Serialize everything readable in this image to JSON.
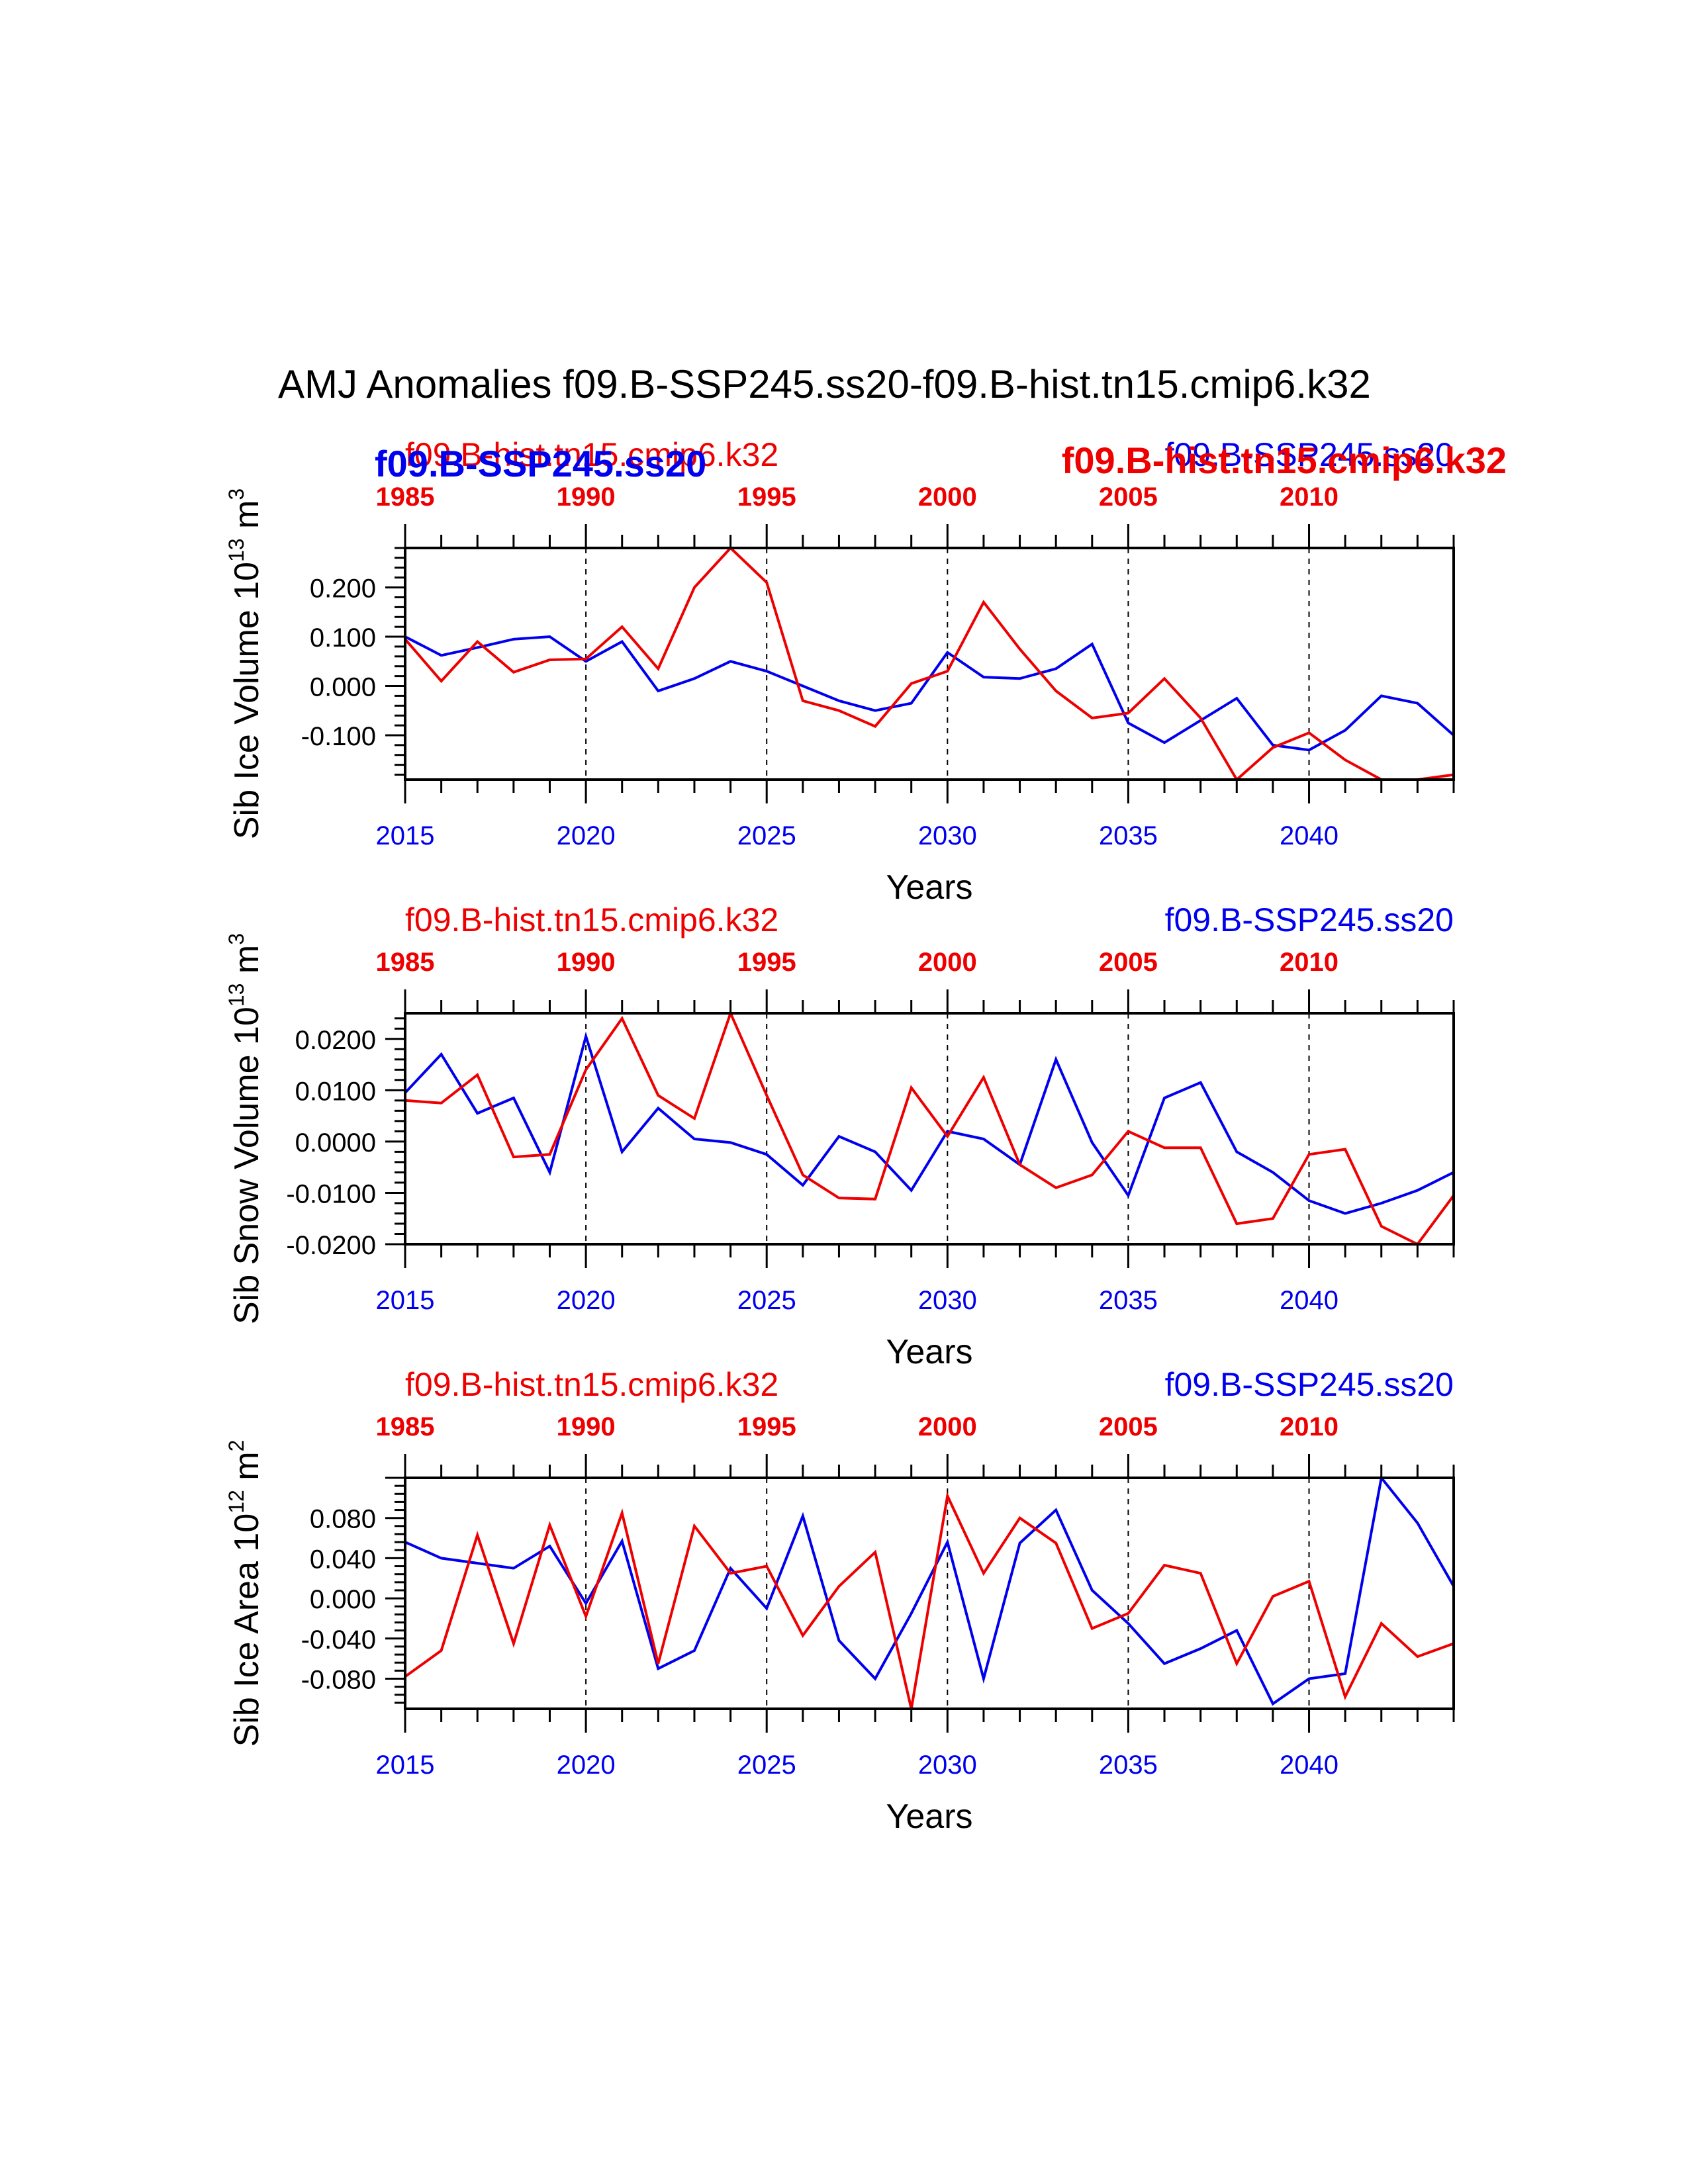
{
  "title": "AMJ Anomalies f09.B-SSP245.ss20-f09.B-hist.tn15.cmip6.k32",
  "colors": {
    "ssp": "#0000ee",
    "hist": "#ee0000",
    "axis": "#000000"
  },
  "xlabel": "Years",
  "bottom_axis_ticks": [
    "2015",
    "2020",
    "2025",
    "2030",
    "2035",
    "2040"
  ],
  "top_axis_ticks": [
    "1985",
    "1990",
    "1995",
    "2000",
    "2005",
    "2010"
  ],
  "panel1_extra_labels": {
    "ssp_bold": "f09.B-SSP245.ss20",
    "hist_bold": "f09.B-hist.tn15.cmip6.k32"
  },
  "chart_data": [
    {
      "type": "line",
      "ylabel": "Sib Ice Volume",
      "yunit_base": "10",
      "yunit_exp": "13",
      "yunit_tail": "m",
      "yunit_tail_exp": "3",
      "ylim": [
        -0.19,
        0.28
      ],
      "yticks": [
        0.2,
        0.1,
        0.0,
        -0.1
      ],
      "ytick_labels": [
        "0.200",
        "0.100",
        "0.000",
        "-0.100"
      ],
      "x": [
        2015,
        2016,
        2017,
        2018,
        2019,
        2020,
        2021,
        2022,
        2023,
        2024,
        2025,
        2026,
        2027,
        2028,
        2029,
        2030,
        2031,
        2032,
        2033,
        2034,
        2035,
        2036,
        2037,
        2038,
        2039,
        2040,
        2041,
        2042,
        2043,
        2044
      ],
      "x_range": [
        2015,
        2044
      ],
      "series": [
        {
          "name": "f09.B-SSP245.ss20",
          "color": "#0000ee",
          "values": [
            0.1,
            0.062,
            0.078,
            0.095,
            0.1,
            0.05,
            0.09,
            -0.01,
            0.015,
            0.05,
            0.03,
            0.0,
            -0.03,
            -0.05,
            -0.035,
            0.068,
            0.018,
            0.015,
            0.035,
            0.085,
            -0.075,
            -0.115,
            -0.07,
            -0.025,
            -0.12,
            -0.13,
            -0.09,
            -0.02,
            -0.035,
            -0.1
          ]
        },
        {
          "name": "f09.B-hist.tn15.cmip6.k32",
          "color": "#ee0000",
          "values": [
            0.095,
            0.01,
            0.09,
            0.028,
            0.053,
            0.055,
            0.12,
            0.035,
            0.2,
            0.28,
            0.21,
            -0.03,
            -0.05,
            -0.082,
            0.005,
            0.03,
            0.17,
            0.075,
            -0.01,
            -0.065,
            -0.055,
            0.015,
            -0.065,
            -0.2,
            -0.125,
            -0.095,
            -0.15,
            -0.19,
            -0.19,
            -0.18
          ]
        }
      ]
    },
    {
      "type": "line",
      "ylabel": "Sib Snow Volume",
      "yunit_base": "10",
      "yunit_exp": "13",
      "yunit_tail": "m",
      "yunit_tail_exp": "3",
      "ylim": [
        -0.02,
        0.025
      ],
      "yticks": [
        0.02,
        0.01,
        0.0,
        -0.01,
        -0.02
      ],
      "ytick_labels": [
        "0.0200",
        "0.0100",
        "0.0000",
        "-0.0100",
        "-0.0200"
      ],
      "x": [
        2015,
        2016,
        2017,
        2018,
        2019,
        2020,
        2021,
        2022,
        2023,
        2024,
        2025,
        2026,
        2027,
        2028,
        2029,
        2030,
        2031,
        2032,
        2033,
        2034,
        2035,
        2036,
        2037,
        2038,
        2039,
        2040,
        2041,
        2042,
        2043,
        2044
      ],
      "x_range": [
        2015,
        2044
      ],
      "series": [
        {
          "name": "f09.B-SSP245.ss20",
          "color": "#0000ee",
          "values": [
            0.0095,
            0.017,
            0.0055,
            0.0085,
            -0.006,
            0.0205,
            -0.002,
            0.0065,
            0.0005,
            -0.0002,
            -0.0025,
            -0.0085,
            0.001,
            -0.002,
            -0.0095,
            0.002,
            0.0005,
            -0.0045,
            0.016,
            -0.0002,
            -0.0105,
            0.0085,
            0.0115,
            -0.002,
            -0.006,
            -0.0115,
            -0.014,
            -0.012,
            -0.0095,
            -0.006
          ]
        },
        {
          "name": "f09.B-hist.tn15.cmip6.k32",
          "color": "#ee0000",
          "values": [
            0.008,
            0.0075,
            0.013,
            -0.003,
            -0.0025,
            0.014,
            0.024,
            0.009,
            0.0045,
            0.025,
            0.009,
            -0.0065,
            -0.011,
            -0.0112,
            0.0105,
            0.001,
            0.0125,
            -0.0045,
            -0.009,
            -0.0065,
            0.002,
            -0.0012,
            -0.0012,
            -0.016,
            -0.015,
            -0.0025,
            -0.0015,
            -0.0165,
            -0.0205,
            -0.0105
          ]
        }
      ]
    },
    {
      "type": "line",
      "ylabel": "Sib Ice Area",
      "yunit_base": "10",
      "yunit_exp": "12",
      "yunit_tail": "m",
      "yunit_tail_exp": "2",
      "ylim": [
        -0.11,
        0.12
      ],
      "yticks": [
        0.08,
        0.04,
        0.0,
        -0.04,
        -0.08
      ],
      "ytick_labels": [
        "0.080",
        "0.040",
        "0.000",
        "-0.040",
        "-0.080"
      ],
      "x": [
        2015,
        2016,
        2017,
        2018,
        2019,
        2020,
        2021,
        2022,
        2023,
        2024,
        2025,
        2026,
        2027,
        2028,
        2029,
        2030,
        2031,
        2032,
        2033,
        2034,
        2035,
        2036,
        2037,
        2038,
        2039,
        2040,
        2041,
        2042,
        2043,
        2044
      ],
      "x_range": [
        2015,
        2044
      ],
      "series": [
        {
          "name": "f09.B-SSP245.ss20",
          "color": "#0000ee",
          "values": [
            0.056,
            0.04,
            0.035,
            0.03,
            0.052,
            -0.005,
            0.057,
            -0.07,
            -0.052,
            0.03,
            -0.01,
            0.082,
            -0.042,
            -0.08,
            -0.015,
            0.056,
            -0.08,
            0.055,
            0.088,
            0.008,
            -0.025,
            -0.065,
            -0.05,
            -0.032,
            -0.105,
            -0.08,
            -0.075,
            0.122,
            0.075,
            0.012
          ]
        },
        {
          "name": "f09.B-hist.tn15.cmip6.k32",
          "color": "#ee0000",
          "values": [
            -0.078,
            -0.052,
            0.063,
            -0.045,
            0.073,
            -0.018,
            0.085,
            -0.065,
            0.072,
            0.025,
            0.032,
            -0.037,
            0.012,
            0.046,
            -0.11,
            0.102,
            0.025,
            0.08,
            0.055,
            -0.03,
            -0.015,
            0.033,
            0.025,
            -0.065,
            0.002,
            0.017,
            -0.098,
            -0.025,
            -0.058,
            -0.045
          ]
        }
      ]
    }
  ]
}
